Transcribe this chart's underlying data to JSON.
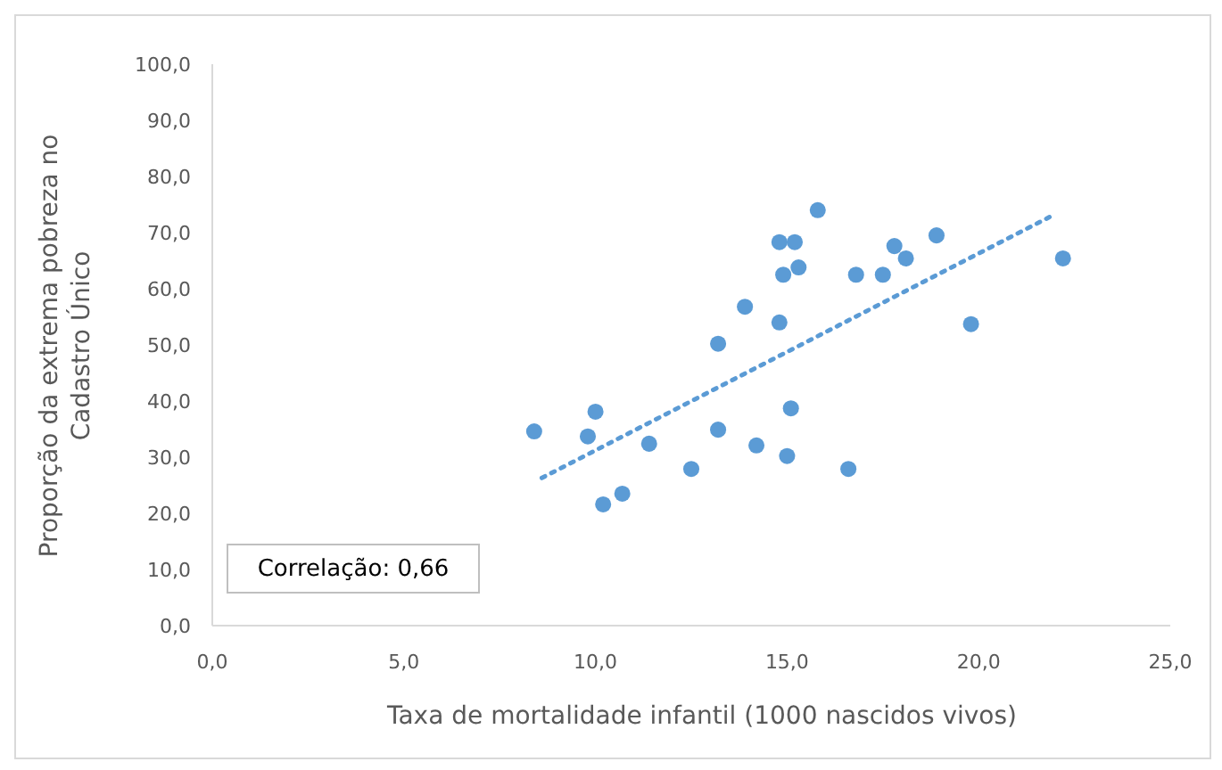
{
  "chart_data": {
    "type": "scatter",
    "xlabel": "Taxa de mortalidade infantil (1000 nascidos vivos)",
    "ylabel": "Proporção da extrema pobreza no Cadastro Único",
    "xlim": [
      0,
      25
    ],
    "xticks": [
      {
        "value": 0,
        "label": "0,0"
      },
      {
        "value": 5,
        "label": "5,0"
      },
      {
        "value": 10,
        "label": "10,0"
      },
      {
        "value": 15,
        "label": "15,0"
      },
      {
        "value": 20,
        "label": "20,0"
      },
      {
        "value": 25,
        "label": "25,0"
      }
    ],
    "ylim": [
      0,
      100
    ],
    "yticks": [
      {
        "value": 0,
        "label": "0,0"
      },
      {
        "value": 10,
        "label": "10,0"
      },
      {
        "value": 20,
        "label": "20,0"
      },
      {
        "value": 30,
        "label": "30,0"
      },
      {
        "value": 40,
        "label": "40,0"
      },
      {
        "value": 50,
        "label": "50,0"
      },
      {
        "value": 60,
        "label": "60,0"
      },
      {
        "value": 70,
        "label": "70,0"
      },
      {
        "value": 80,
        "label": "80,0"
      },
      {
        "value": 90,
        "label": "90,0"
      },
      {
        "value": 100,
        "label": "100,0"
      }
    ],
    "marker": "circle",
    "annotations": [
      "Correlação: 0,66"
    ],
    "series": [
      {
        "color": "#5b9bd5",
        "x": [
          8.4,
          9.8,
          10.0,
          10.2,
          10.7,
          11.4,
          12.5,
          13.2,
          13.2,
          13.9,
          14.2,
          14.8,
          14.9,
          14.8,
          15.0,
          15.1,
          15.2,
          15.3,
          15.8,
          16.6,
          16.8,
          17.5,
          17.8,
          18.1,
          18.9,
          19.8,
          22.2
        ],
        "values": [
          34.6,
          33.7,
          38.1,
          21.6,
          23.5,
          32.4,
          27.9,
          34.9,
          50.2,
          56.8,
          32.1,
          68.3,
          62.5,
          54.0,
          30.2,
          38.7,
          68.3,
          63.8,
          74.0,
          27.9,
          62.5,
          62.5,
          67.6,
          65.4,
          69.5,
          53.7,
          65.4
        ]
      },
      {
        "type": "line",
        "color": "#5b9bd5",
        "line_style": "dotted",
        "marker": "none",
        "x": [
          8.6,
          22.0
        ],
        "values": [
          26.3,
          73.3
        ]
      }
    ]
  }
}
